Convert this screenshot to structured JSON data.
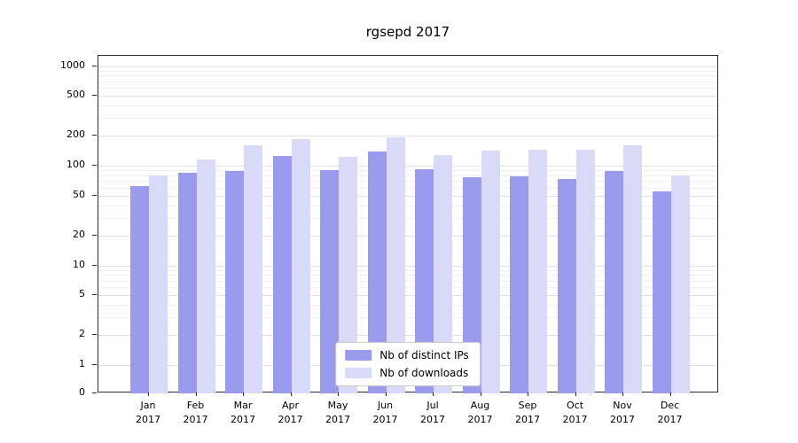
{
  "chart_data": {
    "type": "bar",
    "title": "rgsepd 2017",
    "categories": [
      "Jan",
      "Feb",
      "Mar",
      "Apr",
      "May",
      "Jun",
      "Jul",
      "Aug",
      "Sep",
      "Oct",
      "Nov",
      "Dec"
    ],
    "category_year": "2017",
    "series": [
      {
        "name": "Nb of distinct IPs",
        "color": "#9b9bee",
        "values": [
          62,
          85,
          88,
          125,
          90,
          138,
          92,
          76,
          79,
          74,
          88,
          55
        ]
      },
      {
        "name": "Nb of downloads",
        "color": "#d9d9f8",
        "values": [
          80,
          115,
          160,
          185,
          123,
          192,
          127,
          143,
          146,
          144,
          160,
          80
        ]
      }
    ],
    "yscale": "symlog",
    "yticks": [
      0,
      1,
      2,
      5,
      10,
      20,
      50,
      100,
      200,
      500,
      1000
    ],
    "ylim": [
      0,
      1300
    ],
    "xlabel": "",
    "ylabel": "",
    "grid": "horizontal-only",
    "legend_position": "lower center",
    "colors": {
      "grid_major": "#e0e0e0",
      "grid_minor": "#efefef",
      "spine": "#2b2b2b"
    }
  }
}
